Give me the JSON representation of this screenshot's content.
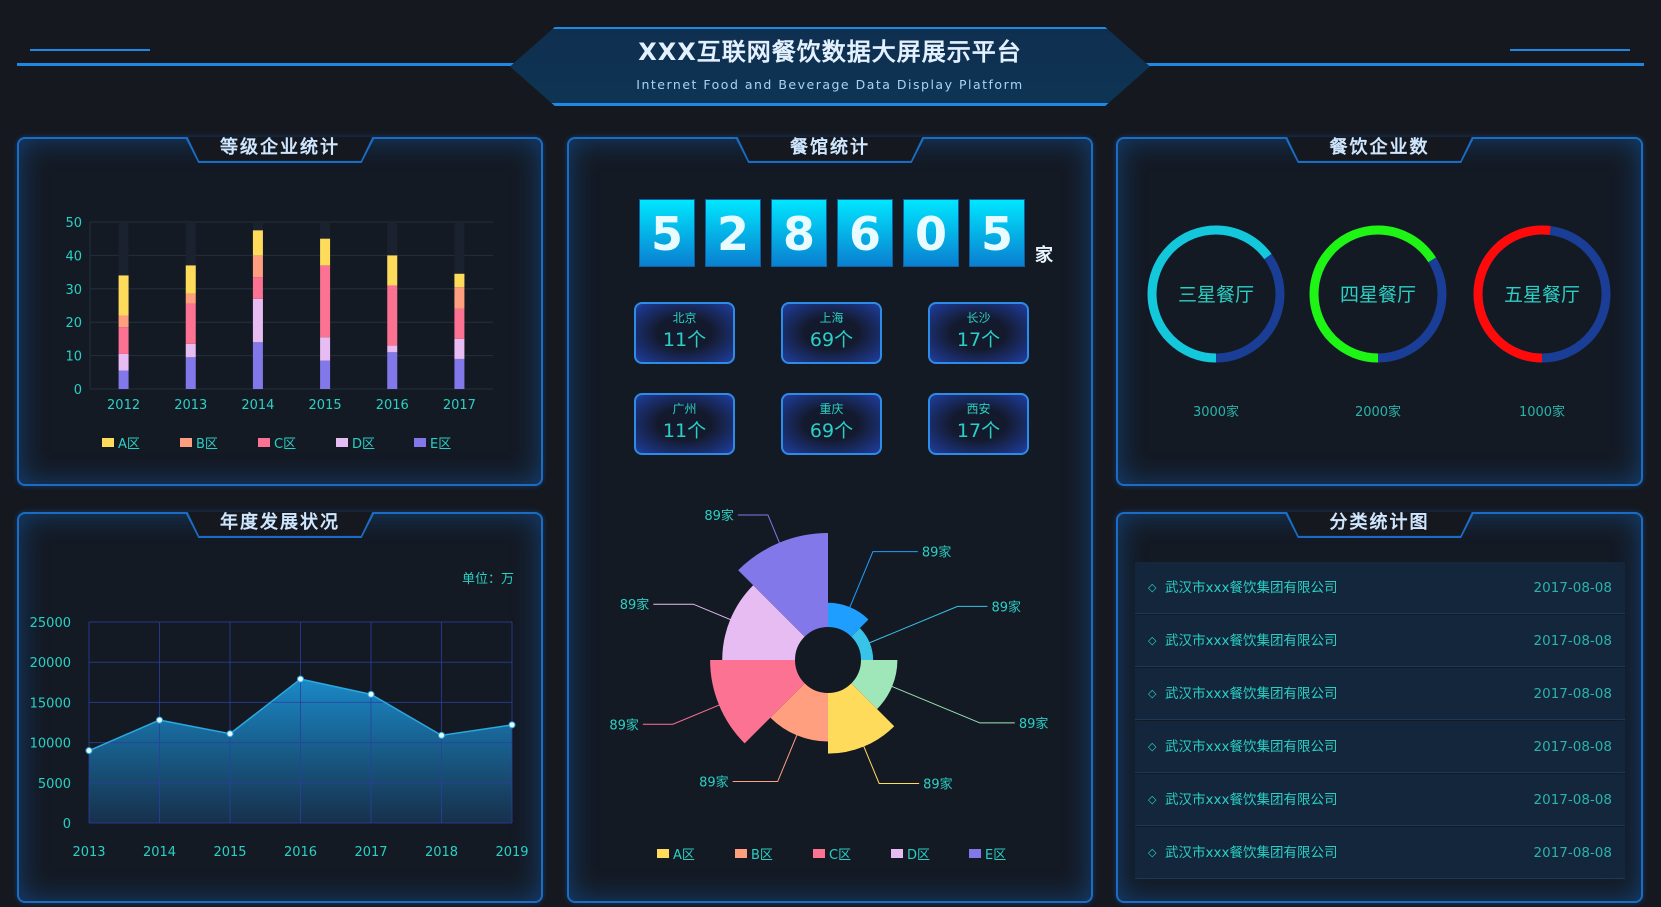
{
  "header": {
    "title": "XXX互联网餐饮数据大屏展示平台",
    "subtitle": "Internet Food and Beverage Data Display Platform"
  },
  "colors": {
    "accent": "#1b6cc4",
    "text": "#2ad0c5",
    "bg": "#15181f"
  },
  "panels": {
    "grade": {
      "title": "等级企业统计"
    },
    "annual": {
      "title": "年度发展状况",
      "unit": "单位：万"
    },
    "restaurants": {
      "title": "餐馆统计",
      "digits": [
        "5",
        "2",
        "8",
        "6",
        "0",
        "5"
      ],
      "digits_unit": "家",
      "cities": [
        {
          "name": "北京",
          "value": "11个"
        },
        {
          "name": "上海",
          "value": "69个"
        },
        {
          "name": "长沙",
          "value": "17个"
        },
        {
          "name": "广州",
          "value": "11个"
        },
        {
          "name": "重庆",
          "value": "69个"
        },
        {
          "name": "西安",
          "value": "17个"
        }
      ]
    },
    "enterprises": {
      "title": "餐饮企业数",
      "rings": [
        {
          "label": "三星餐厅",
          "value": "3000家",
          "fraction": 0.65,
          "color": "#14c8dc"
        },
        {
          "label": "四星餐厅",
          "value": "2000家",
          "fraction": 0.66,
          "color": "#1ef515"
        },
        {
          "label": "五星餐厅",
          "value": "1000家",
          "fraction": 0.52,
          "color": "#ff0a0a"
        }
      ],
      "ring_track_color": "#1a3e96"
    },
    "category": {
      "title": "分类统计图",
      "rows": [
        {
          "name": "武汉市xxx餐饮集团有限公司",
          "date": "2017-08-08"
        },
        {
          "name": "武汉市xxx餐饮集团有限公司",
          "date": "2017-08-08"
        },
        {
          "name": "武汉市xxx餐饮集团有限公司",
          "date": "2017-08-08"
        },
        {
          "name": "武汉市xxx餐饮集团有限公司",
          "date": "2017-08-08"
        },
        {
          "name": "武汉市xxx餐饮集团有限公司",
          "date": "2017-08-08"
        },
        {
          "name": "武汉市xxx餐饮集团有限公司",
          "date": "2017-08-08"
        }
      ]
    }
  },
  "chart_data": [
    {
      "type": "bar",
      "stacked": true,
      "categories": [
        "2012",
        "2013",
        "2014",
        "2015",
        "2016",
        "2017"
      ],
      "ylim": [
        0,
        50
      ],
      "yticks": [
        "0",
        "10",
        "20",
        "30",
        "40",
        "50"
      ],
      "grid": true,
      "legend": "bottom",
      "series": [
        {
          "name": "A区",
          "color": "#ffdb5c",
          "values": [
            12,
            8.5,
            7.5,
            8,
            9,
            4
          ]
        },
        {
          "name": "B区",
          "color": "#ff9f7f",
          "values": [
            3.5,
            3,
            6.5,
            0,
            0,
            6.5
          ]
        },
        {
          "name": "C区",
          "color": "#fb7293",
          "values": [
            8,
            12,
            6.5,
            21.5,
            18,
            9
          ]
        },
        {
          "name": "D区",
          "color": "#e7bcf3",
          "values": [
            5,
            4,
            13,
            7,
            2,
            6
          ]
        },
        {
          "name": "E区",
          "color": "#8378ea",
          "values": [
            5.5,
            9.5,
            14,
            8.5,
            11,
            9
          ]
        }
      ]
    },
    {
      "type": "area",
      "categories": [
        "2013",
        "2014",
        "2015",
        "2016",
        "2017",
        "2018",
        "2019"
      ],
      "values": [
        9000,
        12800,
        11100,
        17900,
        16000,
        10900,
        12200
      ],
      "ylim": [
        0,
        25000
      ],
      "yticks": [
        "0",
        "5000",
        "10000",
        "15000",
        "20000",
        "25000"
      ],
      "grid": true,
      "color": "#1e9fdf"
    },
    {
      "type": "pie",
      "rose": true,
      "labels": [
        "89家",
        "89家",
        "89家",
        "89家",
        "89家",
        "89家",
        "89家",
        "89家"
      ],
      "values": [
        8,
        4,
        12,
        20,
        16,
        28,
        24,
        31
      ],
      "colors": [
        "#1e9fff",
        "#37c4e8",
        "#9fe6b8",
        "#ffdb5c",
        "#ff9f7f",
        "#fb7293",
        "#e7bcf3",
        "#8378ea"
      ],
      "legend": [
        {
          "name": "A区",
          "color": "#ffdb5c"
        },
        {
          "name": "B区",
          "color": "#ff9f7f"
        },
        {
          "name": "C区",
          "color": "#fb7293"
        },
        {
          "name": "D区",
          "color": "#e7bcf3"
        },
        {
          "name": "E区",
          "color": "#8378ea"
        }
      ],
      "legend_position": "bottom"
    }
  ]
}
